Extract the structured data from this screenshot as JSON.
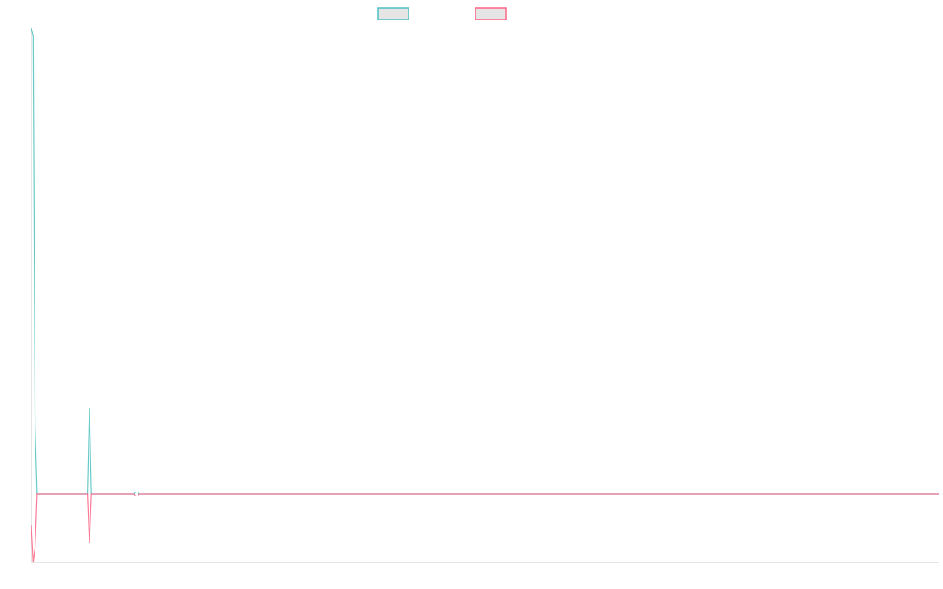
{
  "chart_data": {
    "type": "line",
    "title": "",
    "xlabel": "",
    "ylabel": "",
    "xlim": [
      0,
      500
    ],
    "ylim": [
      -1,
      6.82
    ],
    "grid": false,
    "legend": "top",
    "series": [
      {
        "color": "#4bc0c0",
        "points": [
          [
            0,
            6.82
          ],
          [
            1,
            6.71
          ],
          [
            2,
            1.0
          ],
          [
            3,
            0
          ],
          [
            31,
            0
          ],
          [
            32,
            1.26
          ],
          [
            33,
            0
          ],
          [
            58,
            0
          ],
          [
            500,
            0
          ]
        ]
      },
      {
        "color": "#ff6384",
        "points": [
          [
            0,
            -0.46
          ],
          [
            1,
            -1.0
          ],
          [
            2,
            -0.78
          ],
          [
            3,
            0
          ],
          [
            31,
            0
          ],
          [
            32,
            -0.72
          ],
          [
            33,
            0
          ],
          [
            58,
            0
          ],
          [
            500,
            0
          ]
        ]
      }
    ],
    "marker_points": [
      58
    ]
  }
}
